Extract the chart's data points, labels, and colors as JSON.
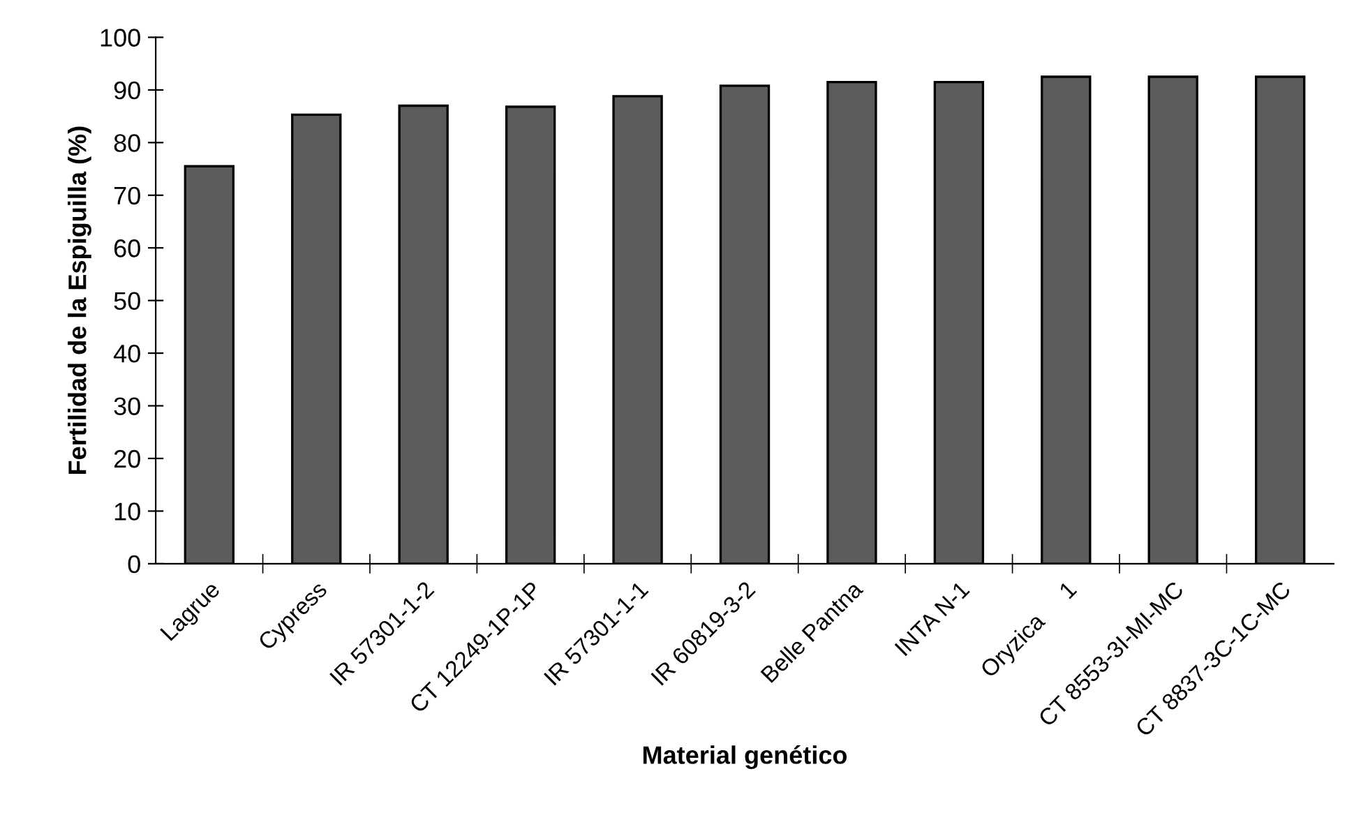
{
  "chart_data": {
    "type": "bar",
    "xlabel": "Material genético",
    "ylabel": "Fertilidad de la Espiguilla (%)",
    "categories": [
      "Lagrue",
      "Cypress",
      "IR 57301-1-2",
      "CT 12249-1P-1P",
      "IR 57301-1-1",
      "IR 60819-3-2",
      "Belle Pantna",
      "INTA N-1",
      "Oryzica     1",
      "CT 8553-3I-MI-MC",
      "CT 8837-3C-1C-MC"
    ],
    "values": [
      75.5,
      85.3,
      87,
      86.8,
      88.8,
      90.8,
      91.5,
      91.5,
      92.5,
      92.5,
      92.5
    ],
    "color": "#5c5c5c",
    "ylim": [
      0,
      100
    ],
    "yticks": [
      0,
      10,
      20,
      30,
      40,
      50,
      60,
      70,
      80,
      90,
      100
    ],
    "grid": false,
    "legend": false
  }
}
